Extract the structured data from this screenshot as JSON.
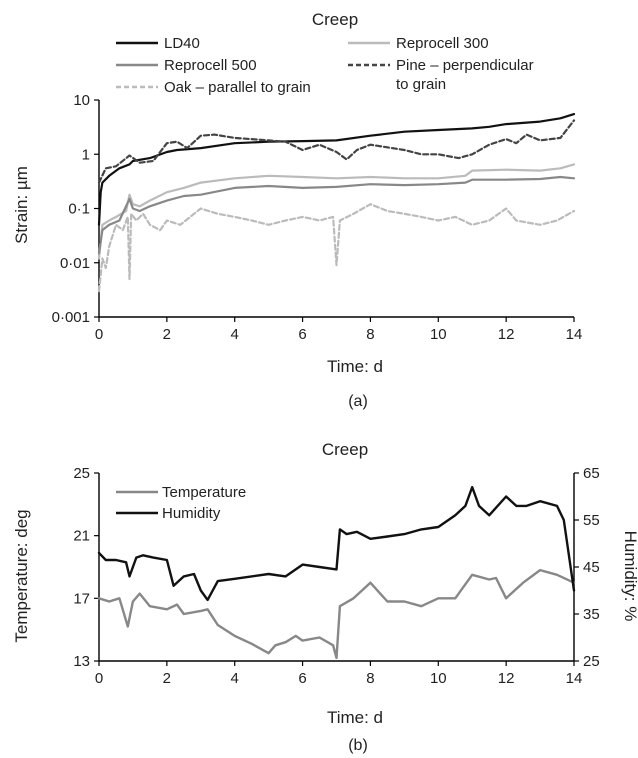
{
  "chart_data": [
    {
      "panel": "(a)",
      "type": "line",
      "title": "Creep",
      "xlabel": "Time: d",
      "ylabel": "Strain: µm",
      "yscale": "log",
      "xlim": [
        0,
        14
      ],
      "ylim": [
        0.001,
        10
      ],
      "x_ticks": [
        "0",
        "2",
        "4",
        "6",
        "8",
        "10",
        "12",
        "14"
      ],
      "y_ticks": [
        "0·001",
        "0·01",
        "0·1",
        "1",
        "10"
      ],
      "legend_placement": "top",
      "series": [
        {
          "name": "LD40",
          "color": "#111111",
          "dash": "solid",
          "points": [
            [
              0,
              0.05
            ],
            [
              0.05,
              0.2
            ],
            [
              0.1,
              0.3
            ],
            [
              0.3,
              0.4
            ],
            [
              0.6,
              0.55
            ],
            [
              0.9,
              0.65
            ],
            [
              1,
              0.75
            ],
            [
              1.5,
              0.85
            ],
            [
              2,
              1.1
            ],
            [
              2.3,
              1.2
            ],
            [
              3,
              1.3
            ],
            [
              4,
              1.6
            ],
            [
              5,
              1.7
            ],
            [
              6,
              1.75
            ],
            [
              7,
              1.8
            ],
            [
              8,
              2.2
            ],
            [
              9,
              2.6
            ],
            [
              10,
              2.8
            ],
            [
              11,
              3.0
            ],
            [
              11.5,
              3.2
            ],
            [
              12,
              3.6
            ],
            [
              13,
              4.0
            ],
            [
              13.6,
              4.6
            ],
            [
              14,
              5.5
            ]
          ]
        },
        {
          "name": "Reprocell 300",
          "color": "#bbbbbb",
          "dash": "solid",
          "points": [
            [
              0,
              0.012
            ],
            [
              0.1,
              0.05
            ],
            [
              0.3,
              0.06
            ],
            [
              0.5,
              0.07
            ],
            [
              0.8,
              0.09
            ],
            [
              0.9,
              0.18
            ],
            [
              1,
              0.12
            ],
            [
              1.2,
              0.11
            ],
            [
              1.5,
              0.14
            ],
            [
              2,
              0.2
            ],
            [
              2.5,
              0.24
            ],
            [
              3,
              0.3
            ],
            [
              4,
              0.36
            ],
            [
              5,
              0.4
            ],
            [
              6,
              0.38
            ],
            [
              7,
              0.36
            ],
            [
              8,
              0.38
            ],
            [
              9,
              0.36
            ],
            [
              10,
              0.36
            ],
            [
              10.8,
              0.4
            ],
            [
              11,
              0.5
            ],
            [
              12,
              0.52
            ],
            [
              13,
              0.5
            ],
            [
              13.6,
              0.55
            ],
            [
              14,
              0.65
            ]
          ]
        },
        {
          "name": "Reprocell 500",
          "color": "#888888",
          "dash": "solid",
          "points": [
            [
              0,
              0.015
            ],
            [
              0.1,
              0.04
            ],
            [
              0.3,
              0.05
            ],
            [
              0.6,
              0.06
            ],
            [
              0.9,
              0.15
            ],
            [
              1,
              0.1
            ],
            [
              1.2,
              0.09
            ],
            [
              1.5,
              0.11
            ],
            [
              2,
              0.14
            ],
            [
              2.5,
              0.17
            ],
            [
              3,
              0.18
            ],
            [
              4,
              0.24
            ],
            [
              5,
              0.26
            ],
            [
              6,
              0.24
            ],
            [
              7,
              0.25
            ],
            [
              8,
              0.28
            ],
            [
              9,
              0.27
            ],
            [
              10,
              0.28
            ],
            [
              10.8,
              0.3
            ],
            [
              11,
              0.34
            ],
            [
              12,
              0.34
            ],
            [
              13,
              0.35
            ],
            [
              13.6,
              0.38
            ],
            [
              14,
              0.36
            ]
          ]
        },
        {
          "name": "Pine – perpendicular to grain",
          "color": "#444444",
          "dash": "dashed",
          "points": [
            [
              0,
              0.3
            ],
            [
              0.2,
              0.55
            ],
            [
              0.5,
              0.6
            ],
            [
              0.9,
              0.95
            ],
            [
              1.2,
              0.7
            ],
            [
              1.6,
              0.75
            ],
            [
              2,
              1.6
            ],
            [
              2.3,
              1.7
            ],
            [
              2.6,
              1.3
            ],
            [
              3,
              2.2
            ],
            [
              3.4,
              2.3
            ],
            [
              4,
              2.0
            ],
            [
              5,
              1.8
            ],
            [
              5.5,
              1.7
            ],
            [
              6,
              1.2
            ],
            [
              6.5,
              1.5
            ],
            [
              7,
              1.1
            ],
            [
              7.3,
              0.8
            ],
            [
              7.6,
              1.2
            ],
            [
              8,
              1.5
            ],
            [
              9,
              1.2
            ],
            [
              9.5,
              1.0
            ],
            [
              10,
              1.0
            ],
            [
              10.6,
              0.85
            ],
            [
              11,
              1.0
            ],
            [
              11.5,
              1.5
            ],
            [
              12,
              1.9
            ],
            [
              12.3,
              1.6
            ],
            [
              12.6,
              2.3
            ],
            [
              13,
              1.8
            ],
            [
              13.6,
              2.0
            ],
            [
              14,
              4.2
            ]
          ]
        },
        {
          "name": "Oak – parallel to grain",
          "color": "#bbbbbb",
          "dash": "dashed",
          "points": [
            [
              0,
              0.003
            ],
            [
              0.1,
              0.012
            ],
            [
              0.2,
              0.008
            ],
            [
              0.3,
              0.02
            ],
            [
              0.5,
              0.05
            ],
            [
              0.7,
              0.04
            ],
            [
              0.85,
              0.07
            ],
            [
              0.9,
              0.005
            ],
            [
              0.95,
              0.08
            ],
            [
              1.1,
              0.06
            ],
            [
              1.3,
              0.08
            ],
            [
              1.5,
              0.05
            ],
            [
              1.8,
              0.04
            ],
            [
              2,
              0.06
            ],
            [
              2.4,
              0.05
            ],
            [
              2.8,
              0.08
            ],
            [
              3,
              0.1
            ],
            [
              3.5,
              0.08
            ],
            [
              4,
              0.07
            ],
            [
              4.5,
              0.06
            ],
            [
              5,
              0.05
            ],
            [
              5.5,
              0.06
            ],
            [
              6,
              0.07
            ],
            [
              6.5,
              0.06
            ],
            [
              6.9,
              0.07
            ],
            [
              7,
              0.009
            ],
            [
              7.1,
              0.06
            ],
            [
              7.5,
              0.08
            ],
            [
              8,
              0.12
            ],
            [
              8.5,
              0.09
            ],
            [
              9,
              0.08
            ],
            [
              9.5,
              0.07
            ],
            [
              10,
              0.06
            ],
            [
              10.5,
              0.07
            ],
            [
              11,
              0.05
            ],
            [
              11.5,
              0.06
            ],
            [
              12,
              0.1
            ],
            [
              12.3,
              0.06
            ],
            [
              13,
              0.05
            ],
            [
              13.5,
              0.06
            ],
            [
              14,
              0.09
            ]
          ]
        }
      ]
    },
    {
      "panel": "(b)",
      "type": "line",
      "title": "Creep",
      "xlabel": "Time: d",
      "ylabel": "Temperature: deg",
      "y2label": "Humidity: %",
      "xlim": [
        0,
        14
      ],
      "ylim": [
        13,
        25
      ],
      "y2lim": [
        25,
        65
      ],
      "x_ticks": [
        "0",
        "2",
        "4",
        "6",
        "8",
        "10",
        "12",
        "14"
      ],
      "y_ticks": [
        "13",
        "17",
        "21",
        "25"
      ],
      "y2_ticks": [
        "25",
        "35",
        "45",
        "55",
        "65"
      ],
      "legend_placement": "top-left",
      "series": [
        {
          "name": "Temperature",
          "color": "#888888",
          "axis": "left",
          "points": [
            [
              0,
              17
            ],
            [
              0.3,
              16.8
            ],
            [
              0.6,
              17
            ],
            [
              0.85,
              15.2
            ],
            [
              1,
              16.8
            ],
            [
              1.2,
              17.3
            ],
            [
              1.5,
              16.5
            ],
            [
              2,
              16.3
            ],
            [
              2.3,
              16.6
            ],
            [
              2.5,
              16
            ],
            [
              3,
              16.2
            ],
            [
              3.2,
              16.3
            ],
            [
              3.5,
              15.3
            ],
            [
              4,
              14.6
            ],
            [
              4.5,
              14.1
            ],
            [
              5,
              13.5
            ],
            [
              5.2,
              14
            ],
            [
              5.5,
              14.2
            ],
            [
              5.8,
              14.6
            ],
            [
              6,
              14.3
            ],
            [
              6.5,
              14.5
            ],
            [
              6.9,
              14
            ],
            [
              7,
              13.2
            ],
            [
              7.1,
              16.5
            ],
            [
              7.5,
              17
            ],
            [
              8,
              18
            ],
            [
              8.5,
              16.8
            ],
            [
              9,
              16.8
            ],
            [
              9.5,
              16.5
            ],
            [
              10,
              17
            ],
            [
              10.5,
              17
            ],
            [
              10.7,
              17.6
            ],
            [
              11,
              18.5
            ],
            [
              11.5,
              18.2
            ],
            [
              11.7,
              18.3
            ],
            [
              12,
              17
            ],
            [
              12.5,
              18
            ],
            [
              13,
              18.8
            ],
            [
              13.5,
              18.5
            ],
            [
              14,
              18
            ]
          ]
        },
        {
          "name": "Humidity",
          "color": "#111111",
          "axis": "right",
          "points": [
            [
              0,
              48
            ],
            [
              0.2,
              46.5
            ],
            [
              0.5,
              46.5
            ],
            [
              0.8,
              46
            ],
            [
              0.9,
              43
            ],
            [
              1.1,
              47
            ],
            [
              1.3,
              47.5
            ],
            [
              1.6,
              47
            ],
            [
              2,
              46.5
            ],
            [
              2.2,
              41
            ],
            [
              2.5,
              43
            ],
            [
              2.8,
              43.5
            ],
            [
              3,
              40
            ],
            [
              3.2,
              38
            ],
            [
              3.5,
              42
            ],
            [
              4,
              42.5
            ],
            [
              5,
              43.5
            ],
            [
              5.5,
              43
            ],
            [
              6,
              45.5
            ],
            [
              6.5,
              45
            ],
            [
              7,
              44.5
            ],
            [
              7.1,
              53
            ],
            [
              7.3,
              52
            ],
            [
              7.6,
              52.5
            ],
            [
              8,
              51
            ],
            [
              8.5,
              51.5
            ],
            [
              9,
              52
            ],
            [
              9.5,
              53
            ],
            [
              10,
              53.5
            ],
            [
              10.5,
              56
            ],
            [
              10.8,
              58
            ],
            [
              11,
              62
            ],
            [
              11.2,
              58
            ],
            [
              11.5,
              56
            ],
            [
              12,
              60
            ],
            [
              12.3,
              58
            ],
            [
              12.6,
              58
            ],
            [
              13,
              59
            ],
            [
              13.5,
              58
            ],
            [
              13.7,
              55
            ],
            [
              14,
              40
            ]
          ]
        }
      ]
    }
  ]
}
